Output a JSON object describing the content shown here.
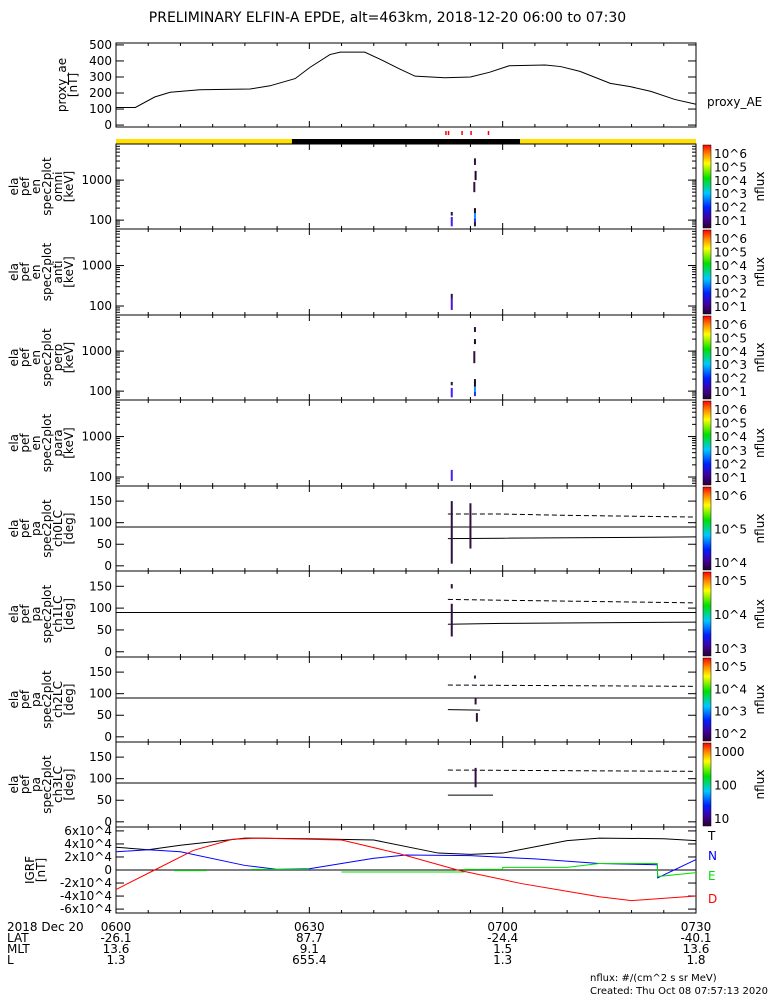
{
  "title": "PRELIMINARY ELFIN-A EPDE, alt=463km, 2018-12-20 06:00 to 07:30",
  "footer": {
    "units": "nflux: #/(cm^2 s sr MeV)",
    "created": "Created: Thu Oct 08 07:57:13 2020"
  },
  "chart_data": [
    {
      "type": "line",
      "name": "proxy_ae",
      "ylabel": [
        "proxy_ae",
        "[nT]"
      ],
      "legend": "proxy_AE",
      "ylim": [
        -12,
        512
      ],
      "yticks": [
        0,
        100,
        200,
        300,
        400,
        500
      ],
      "x_minutes": [
        0,
        3,
        6,
        8.4,
        13,
        20.8,
        23.9,
        27.8,
        30.1,
        33.2,
        34.8,
        38.6,
        41,
        44,
        46.4,
        51,
        55,
        58,
        61,
        66.6,
        69,
        72,
        76.7,
        79.8,
        83,
        86.7,
        90
      ],
      "values": [
        110,
        110,
        175,
        205,
        220,
        225,
        245,
        290,
        360,
        440,
        455,
        455,
        410,
        350,
        305,
        295,
        300,
        330,
        370,
        375,
        365,
        335,
        260,
        240,
        210,
        160,
        130
      ]
    },
    {
      "type": "bar",
      "name": "science_zones",
      "red_marks_minutes": [
        51.2,
        51.6,
        53.7,
        55.1,
        57.8
      ],
      "day_night_bar": [
        {
          "from": 0,
          "to": 27.3,
          "color": "#ffe000"
        },
        {
          "from": 27.3,
          "to": 62.7,
          "color": "#000000"
        },
        {
          "from": 62.7,
          "to": 90,
          "color": "#ffe000"
        }
      ]
    },
    {
      "type": "heatmap",
      "name": "omni",
      "ylabel": [
        "ela",
        "pef",
        "en",
        "spec2plot",
        "omni",
        "[keV]"
      ],
      "yscale": "log",
      "ylim": [
        60,
        8000
      ],
      "yticks": [
        100,
        1000
      ],
      "zlabel": "nflux",
      "zticks": [
        "10^6",
        "10^5",
        "10^4",
        "10^3",
        "10^2",
        "10^1"
      ],
      "zlog": [
        1,
        6
      ],
      "marks": [
        {
          "t": 52.1,
          "y0": 70,
          "y1": 120,
          "color": "#4020ff"
        },
        {
          "t": 52.1,
          "y0": 130,
          "y1": 160,
          "color": "#301040"
        },
        {
          "t": 55.7,
          "y0": 70,
          "y1": 90,
          "color": "#301040"
        },
        {
          "t": 55.7,
          "y0": 90,
          "y1": 110,
          "color": "#2030ff"
        },
        {
          "t": 55.7,
          "y0": 110,
          "y1": 150,
          "color": "#1890ff"
        },
        {
          "t": 55.7,
          "y0": 150,
          "y1": 200,
          "color": "#200828"
        },
        {
          "t": 55.6,
          "y0": 500,
          "y1": 900,
          "color": "#301040"
        },
        {
          "t": 55.8,
          "y0": 1000,
          "y1": 1700,
          "color": "#200828"
        },
        {
          "t": 55.7,
          "y0": 2400,
          "y1": 3500,
          "color": "#301040"
        }
      ]
    },
    {
      "type": "heatmap",
      "name": "anti",
      "ylabel": [
        "ela",
        "pef",
        "en",
        "spec2plot",
        "anti",
        "[keV]"
      ],
      "yscale": "log",
      "ylim": [
        60,
        8000
      ],
      "yticks": [
        100,
        1000
      ],
      "zlabel": "nflux",
      "zticks": [
        "10^6",
        "10^5",
        "10^4",
        "10^3",
        "10^2",
        "10^1"
      ],
      "zlog": [
        1,
        6
      ],
      "marks": [
        {
          "t": 52.1,
          "y0": 80,
          "y1": 150,
          "color": "#5010e0"
        },
        {
          "t": 52.1,
          "y0": 150,
          "y1": 200,
          "color": "#301040"
        }
      ]
    },
    {
      "type": "heatmap",
      "name": "perp",
      "ylabel": [
        "ela",
        "pef",
        "en",
        "spec2plot",
        "perp",
        "[keV]"
      ],
      "yscale": "log",
      "ylim": [
        60,
        8000
      ],
      "yticks": [
        100,
        1000
      ],
      "zlabel": "nflux",
      "zticks": [
        "10^6",
        "10^5",
        "10^4",
        "10^3",
        "10^2",
        "10^1"
      ],
      "zlog": [
        1,
        6
      ],
      "marks": [
        {
          "t": 52.1,
          "y0": 70,
          "y1": 120,
          "color": "#4020ff"
        },
        {
          "t": 52.1,
          "y0": 140,
          "y1": 170,
          "color": "#301040"
        },
        {
          "t": 55.7,
          "y0": 75,
          "y1": 95,
          "color": "#2030ff"
        },
        {
          "t": 55.7,
          "y0": 95,
          "y1": 130,
          "color": "#1890ff"
        },
        {
          "t": 55.7,
          "y0": 130,
          "y1": 200,
          "color": "#200828"
        },
        {
          "t": 55.6,
          "y0": 500,
          "y1": 1000,
          "color": "#301040"
        },
        {
          "t": 55.7,
          "y0": 1500,
          "y1": 2000,
          "color": "#200828"
        },
        {
          "t": 55.7,
          "y0": 3000,
          "y1": 4000,
          "color": "#301040"
        }
      ]
    },
    {
      "type": "heatmap",
      "name": "para",
      "ylabel": [
        "ela",
        "pef",
        "en",
        "spec2plot",
        "para",
        "[keV]"
      ],
      "yscale": "log",
      "ylim": [
        60,
        8000
      ],
      "yticks": [
        100,
        1000
      ],
      "zlabel": "nflux",
      "zticks": [
        "10^6",
        "10^5",
        "10^4",
        "10^3",
        "10^2",
        "10^1"
      ],
      "zlog": [
        1,
        6
      ],
      "marks": [
        {
          "t": 52.1,
          "y0": 80,
          "y1": 150,
          "color": "#4020ff"
        }
      ]
    },
    {
      "type": "heatmap",
      "name": "ch0LC",
      "ylabel": [
        "ela",
        "pef",
        "pa",
        "spec2plot",
        "ch0LC",
        "[deg]"
      ],
      "ylim": [
        -12,
        185
      ],
      "yticks": [
        0,
        50,
        100,
        150
      ],
      "zlabel": "nflux",
      "zticks": [
        "10^6",
        "10^5",
        "10^4"
      ],
      "zlog": [
        3.6,
        6
      ],
      "marks": [
        {
          "t": 52.1,
          "y0": 5,
          "y1": 150,
          "color": "#301040"
        },
        {
          "t": 55.0,
          "y0": 40,
          "y1": 145,
          "color": "#301040"
        }
      ],
      "lines": [
        {
          "style": "solid",
          "t": [
            0,
            90
          ],
          "v": [
            90,
            90
          ]
        },
        {
          "style": "dashed",
          "t": [
            51.5,
            60,
            70,
            90
          ],
          "v": [
            120,
            120,
            117,
            113
          ]
        },
        {
          "style": "solid",
          "t": [
            51.5,
            60,
            90
          ],
          "v": [
            63,
            64,
            67
          ]
        }
      ]
    },
    {
      "type": "heatmap",
      "name": "ch1LC",
      "ylabel": [
        "ela",
        "pef",
        "pa",
        "spec2plot",
        "ch1LC",
        "[deg]"
      ],
      "ylim": [
        -12,
        185
      ],
      "yticks": [
        0,
        50,
        100,
        150
      ],
      "zlabel": "nflux",
      "zticks": [
        "10^5",
        "10^4",
        "10^3"
      ],
      "zlog": [
        2.8,
        5.3
      ],
      "marks": [
        {
          "t": 52.1,
          "y0": 35,
          "y1": 110,
          "color": "#301040"
        },
        {
          "t": 52.1,
          "y0": 145,
          "y1": 155,
          "color": "#301040"
        }
      ],
      "lines": [
        {
          "style": "solid",
          "t": [
            0,
            90
          ],
          "v": [
            90,
            90
          ]
        },
        {
          "style": "dashed",
          "t": [
            51.5,
            60,
            90
          ],
          "v": [
            120,
            118,
            112
          ]
        },
        {
          "style": "solid",
          "t": [
            51.5,
            60,
            90
          ],
          "v": [
            63,
            65,
            68
          ]
        }
      ]
    },
    {
      "type": "heatmap",
      "name": "ch2LC",
      "ylabel": [
        "ela",
        "pef",
        "pa",
        "spec2plot",
        "ch2LC",
        "[deg]"
      ],
      "ylim": [
        -12,
        185
      ],
      "yticks": [
        0,
        50,
        100,
        150
      ],
      "zlabel": "nflux",
      "zticks": [
        "10^5",
        "10^4",
        "10^3",
        "10^2"
      ],
      "zlog": [
        1.8,
        5.2
      ],
      "marks": [
        {
          "t": 55.8,
          "y0": 75,
          "y1": 90,
          "color": "#301040"
        },
        {
          "t": 55.7,
          "y0": 135,
          "y1": 142,
          "color": "#301040"
        },
        {
          "t": 56.0,
          "y0": 35,
          "y1": 55,
          "color": "#301040"
        }
      ],
      "lines": [
        {
          "style": "solid",
          "t": [
            0,
            90
          ],
          "v": [
            90,
            90
          ]
        },
        {
          "style": "dashed",
          "t": [
            51.5,
            90
          ],
          "v": [
            120,
            117
          ]
        },
        {
          "style": "solid",
          "t": [
            51.5,
            56.5
          ],
          "v": [
            63,
            62
          ]
        }
      ]
    },
    {
      "type": "heatmap",
      "name": "ch3LC",
      "ylabel": [
        "ela",
        "pef",
        "pa",
        "spec2plot",
        "ch3LC",
        "[deg]"
      ],
      "ylim": [
        -12,
        185
      ],
      "yticks": [
        0,
        50,
        100,
        150
      ],
      "zlabel": "nflux",
      "zticks": [
        "1000",
        "100",
        "10"
      ],
      "zlog": [
        1,
        3.3
      ],
      "marks": [
        {
          "t": 55.8,
          "y0": 80,
          "y1": 125,
          "color": "#301040"
        }
      ],
      "lines": [
        {
          "style": "solid",
          "t": [
            0,
            90
          ],
          "v": [
            90,
            90
          ]
        },
        {
          "style": "dashed",
          "t": [
            51.5,
            90
          ],
          "v": [
            120,
            117
          ]
        },
        {
          "style": "solid",
          "t": [
            51.5,
            58.5
          ],
          "v": [
            62,
            62
          ]
        }
      ]
    },
    {
      "type": "line",
      "name": "IGRF",
      "ylabel": [
        "IGRF",
        "[nT]"
      ],
      "ylim": [
        -66000,
        66000
      ],
      "yticks": [
        -60000,
        -40000,
        -20000,
        0,
        20000,
        40000,
        60000
      ],
      "ytick_labels": [
        "-6x10^4",
        "-4x10^4",
        "-2x10^4",
        "0",
        "2x10^4",
        "4x10^4",
        "6x10^4"
      ],
      "series": [
        {
          "name": "T",
          "color": "#000000",
          "t": [
            0,
            5,
            10,
            20,
            30,
            40,
            50,
            55,
            60,
            70,
            75,
            85,
            90
          ],
          "v": [
            35000,
            31000,
            38000,
            49000,
            48000,
            46000,
            26000,
            24000,
            26000,
            45000,
            49000,
            48000,
            45000
          ]
        },
        {
          "name": "N",
          "color": "#0000ff",
          "t": [
            0,
            5,
            10,
            20,
            25,
            30,
            40,
            45,
            55,
            65,
            75,
            84,
            84.05,
            90
          ],
          "v": [
            28000,
            31000,
            28000,
            7000,
            1000,
            2000,
            18000,
            23000,
            22000,
            17000,
            10000,
            8000,
            -12000,
            16000
          ]
        },
        {
          "name": "E",
          "color": "#00e000",
          "t": [
            9,
            14,
            14.01,
            21,
            30,
            30.01,
            35,
            54,
            54.01,
            60,
            60.01,
            70,
            75,
            84,
            84.05,
            90
          ],
          "v": [
            -1000,
            -1000,
            null,
            1000,
            1000,
            null,
            -3000,
            -3000,
            1000,
            1000,
            4000,
            4000,
            10000,
            10000,
            -10000,
            -4000
          ]
        },
        {
          "name": "D",
          "color": "#ff0000",
          "t": [
            0,
            6,
            12,
            18,
            22,
            35,
            44,
            53,
            63,
            75,
            80,
            90
          ],
          "v": [
            -30000,
            0,
            30000,
            47000,
            49000,
            46000,
            25000,
            0,
            -21000,
            -41000,
            -47000,
            -40000
          ]
        }
      ]
    },
    {
      "type": "table",
      "name": "time_axis",
      "date_label": "2018 Dec 20",
      "ticks_minutes": [
        0,
        30,
        60,
        90
      ],
      "rows": [
        {
          "label": "",
          "values": [
            "0600",
            "0630",
            "0700",
            "0730"
          ]
        },
        {
          "label": "LAT",
          "values": [
            "-26.1",
            "87.7",
            "-24.4",
            "-40.1"
          ]
        },
        {
          "label": "MLT",
          "values": [
            "13.6",
            "9.1",
            "1.5",
            "13.6"
          ]
        },
        {
          "label": "L",
          "values": [
            "1.3",
            "655.4",
            "1.3",
            "1.8"
          ]
        }
      ]
    }
  ]
}
